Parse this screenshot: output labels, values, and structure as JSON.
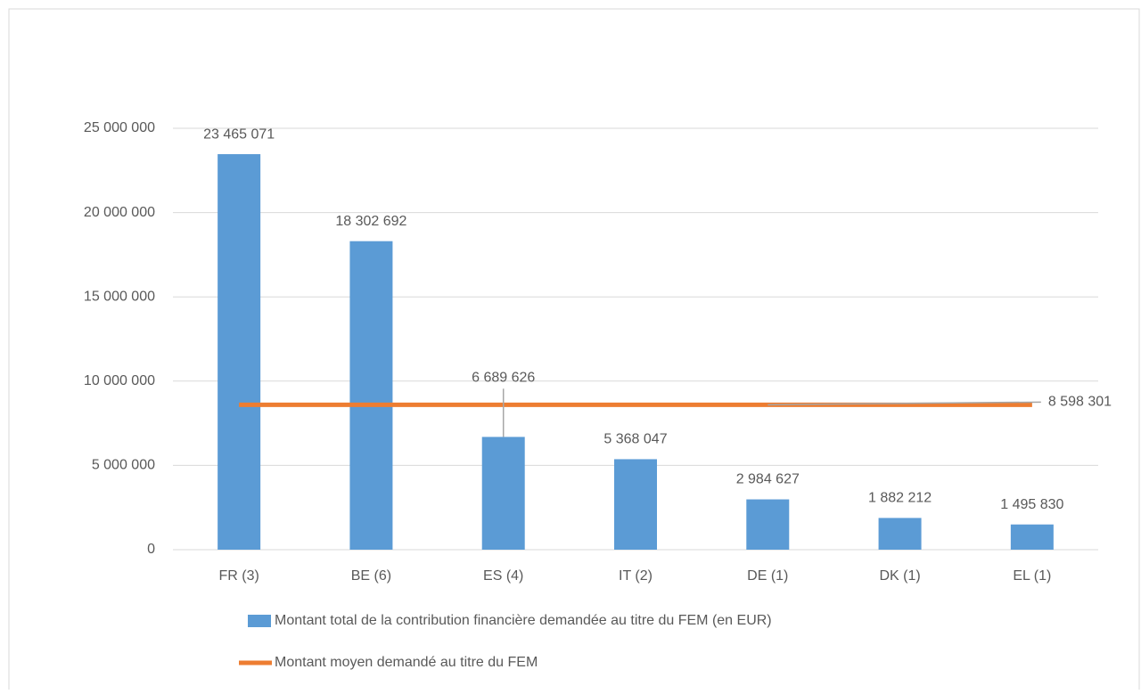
{
  "chart_data": {
    "type": "bar",
    "categories": [
      "FR (3)",
      "BE (6)",
      "ES (4)",
      "IT (2)",
      "DE (1)",
      "DK (1)",
      "EL (1)"
    ],
    "series": [
      {
        "name": "Montant total de la contribution financière demandée au titre du FEM (en EUR)",
        "color": "#5b9bd5",
        "values": [
          23465071,
          18302692,
          6689626,
          5368047,
          2984627,
          1882212,
          1495830
        ],
        "value_labels": [
          "23 465 071",
          "18 302 692",
          "6 689 626",
          "5 368 047",
          "2 984 627",
          "1 882 212",
          "1 495 830"
        ]
      },
      {
        "name": "Montant moyen demandé au titre du FEM",
        "color": "#ed7d31",
        "type": "line",
        "values": [
          8598301,
          8598301,
          8598301,
          8598301,
          8598301,
          8598301,
          8598301
        ],
        "value_labels": [
          null,
          null,
          null,
          null,
          null,
          null,
          "8 598 301"
        ]
      }
    ],
    "ylim": [
      0,
      25000000
    ],
    "yticks": [
      0,
      {
        "value": 5000000,
        "label": "5 000 000"
      },
      {
        "value": 10000000,
        "label": "10 000 000"
      },
      {
        "value": 15000000,
        "label": "15 000 000"
      },
      {
        "value": 20000000,
        "label": "20 000 000"
      },
      {
        "value": 25000000,
        "label": "25 000 000"
      }
    ],
    "grid": true
  }
}
